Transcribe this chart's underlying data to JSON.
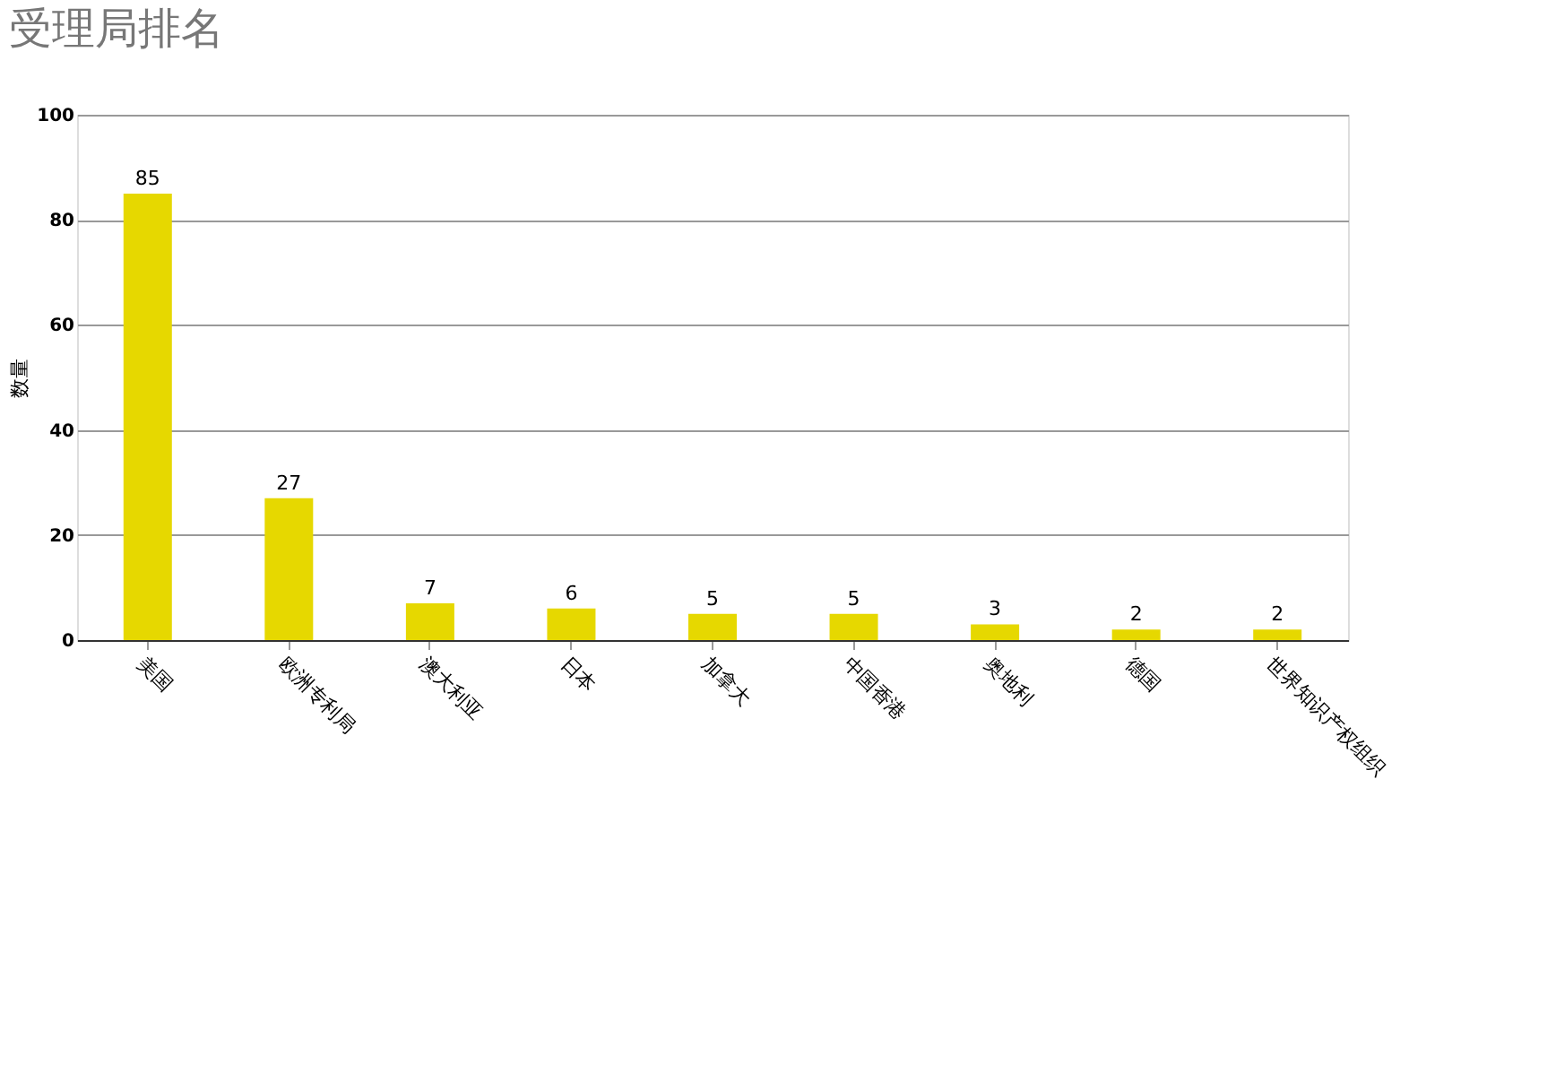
{
  "chart_data": {
    "type": "bar",
    "title": "受理局排名",
    "ylabel": "数量",
    "categories": [
      "美国",
      "欧洲专利局",
      "澳大利亚",
      "日本",
      "加拿大",
      "中国香港",
      "奥地利",
      "德国",
      "世界知识产权组织"
    ],
    "values": [
      85,
      27,
      7,
      6,
      5,
      5,
      3,
      2,
      2
    ],
    "color": "#e6d800",
    "ylim": [
      0,
      100
    ],
    "yticks": [
      0,
      20,
      40,
      60,
      80,
      100
    ],
    "grid": "y",
    "data_labels": true
  }
}
